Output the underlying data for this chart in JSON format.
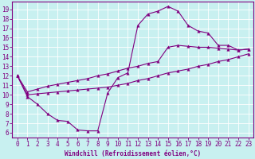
{
  "xlabel": "Windchill (Refroidissement éolien,°C)",
  "bg_color": "#c8f0f0",
  "line_color": "#800080",
  "xlim": [
    -0.5,
    23.5
  ],
  "ylim": [
    5.5,
    19.8
  ],
  "xticks": [
    0,
    1,
    2,
    3,
    4,
    5,
    6,
    7,
    8,
    9,
    10,
    11,
    12,
    13,
    14,
    15,
    16,
    17,
    18,
    19,
    20,
    21,
    22,
    23
  ],
  "yticks": [
    6,
    7,
    8,
    9,
    10,
    11,
    12,
    13,
    14,
    15,
    16,
    17,
    18,
    19
  ],
  "curve1_x": [
    0,
    1,
    2,
    3,
    4,
    5,
    6,
    7,
    8,
    9,
    10,
    11,
    12,
    13,
    14,
    15,
    16,
    17,
    18,
    19,
    20,
    21,
    22,
    23
  ],
  "curve1_y": [
    12.0,
    9.8,
    9.0,
    8.0,
    7.3,
    7.2,
    6.3,
    6.2,
    6.2,
    10.2,
    11.8,
    12.3,
    17.3,
    18.5,
    18.8,
    19.3,
    18.8,
    17.3,
    16.7,
    16.5,
    15.2,
    15.2,
    14.7,
    14.8
  ],
  "curve2_x": [
    0,
    1,
    2,
    3,
    4,
    5,
    6,
    7,
    8,
    9,
    10,
    11,
    12,
    13,
    14,
    15,
    16,
    17,
    18,
    19,
    20,
    21,
    22,
    23
  ],
  "curve2_y": [
    12.0,
    10.0,
    10.1,
    10.2,
    10.3,
    10.4,
    10.5,
    10.6,
    10.7,
    10.8,
    11.0,
    11.2,
    11.5,
    11.7,
    12.0,
    12.3,
    12.5,
    12.7,
    13.0,
    13.2,
    13.5,
    13.7,
    14.0,
    14.3
  ],
  "curve3_x": [
    0,
    1,
    2,
    3,
    4,
    5,
    6,
    7,
    8,
    9,
    10,
    11,
    12,
    13,
    14,
    15,
    16,
    17,
    18,
    19,
    20,
    21,
    22,
    23
  ],
  "curve3_y": [
    12.0,
    10.3,
    10.6,
    10.9,
    11.1,
    11.3,
    11.5,
    11.7,
    12.0,
    12.2,
    12.5,
    12.8,
    13.0,
    13.3,
    13.5,
    15.0,
    15.2,
    15.1,
    15.0,
    15.0,
    14.9,
    14.8,
    14.7,
    14.8
  ],
  "tick_fontsize": 5.5,
  "xlabel_fontsize": 5.5,
  "marker_size": 2.5,
  "linewidth": 0.8
}
